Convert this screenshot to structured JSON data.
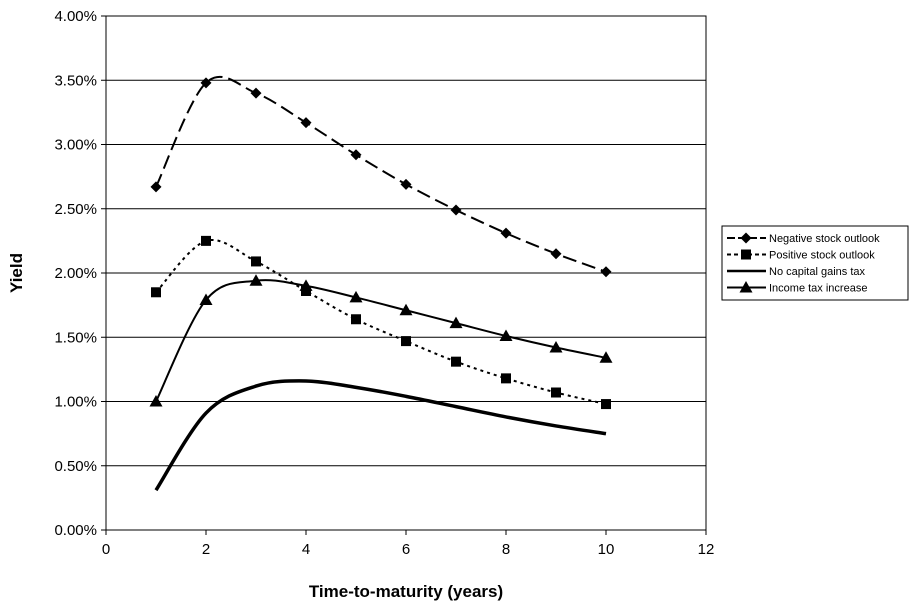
{
  "chart_data": {
    "type": "line",
    "title": "",
    "xlabel": "Time-to-maturity (years)",
    "ylabel": "Yield",
    "xlim": [
      0,
      12
    ],
    "ylim": [
      0,
      0.04
    ],
    "x_ticks": [
      "0",
      "2",
      "4",
      "6",
      "8",
      "10",
      "12"
    ],
    "y_ticks": [
      "0.00%",
      "0.50%",
      "1.00%",
      "1.50%",
      "2.00%",
      "2.50%",
      "3.00%",
      "3.50%",
      "4.00%"
    ],
    "grid": "horizontal",
    "legend_position": "right",
    "x": [
      1,
      2,
      3,
      4,
      5,
      6,
      7,
      8,
      9,
      10
    ],
    "series": [
      {
        "name": "Negative stock outlook",
        "marker": "diamond",
        "line": "long-dash",
        "color": "#000000",
        "values": [
          0.0267,
          0.0348,
          0.034,
          0.0317,
          0.0292,
          0.0269,
          0.0249,
          0.0231,
          0.0215,
          0.0201
        ]
      },
      {
        "name": "Positive stock outlook",
        "marker": "square",
        "line": "dotted",
        "color": "#000000",
        "values": [
          0.0185,
          0.0225,
          0.0209,
          0.0186,
          0.0164,
          0.0147,
          0.0131,
          0.0118,
          0.0107,
          0.0098
        ]
      },
      {
        "name": "No capital gains tax",
        "marker": "none",
        "line": "thick-solid",
        "color": "#000000",
        "values": [
          0.0031,
          0.0091,
          0.0112,
          0.0116,
          0.0111,
          0.0104,
          0.0096,
          0.0088,
          0.0081,
          0.0075
        ]
      },
      {
        "name": "Income tax increase",
        "marker": "triangle",
        "line": "solid",
        "color": "#000000",
        "values": [
          0.01,
          0.0179,
          0.0194,
          0.019,
          0.0181,
          0.0171,
          0.0161,
          0.0151,
          0.0142,
          0.0134
        ]
      }
    ]
  }
}
